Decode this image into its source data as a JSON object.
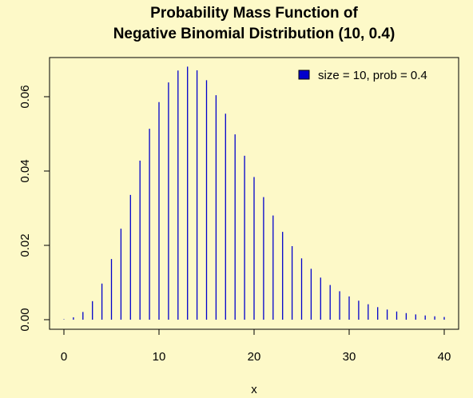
{
  "chart_data": {
    "type": "bar",
    "title": "Probability Mass Function of",
    "subtitle": "Negative Binomial Distribution (10, 0.4)",
    "xlabel": "x",
    "ylabel": "",
    "xlim": [
      0,
      40
    ],
    "ylim": [
      0,
      0.068
    ],
    "x_ticks": [
      "0",
      "10",
      "20",
      "30",
      "40"
    ],
    "y_ticks": [
      "0.00",
      "0.02",
      "0.04",
      "0.06"
    ],
    "legend_position": "top-right",
    "grid": false,
    "colors": {
      "bars": "#0000cc",
      "background": "#fdf9c8",
      "legend_box": "#0000cc"
    },
    "series": [
      {
        "name": "size = 10, prob = 0.4",
        "x": [
          0,
          1,
          2,
          3,
          4,
          5,
          6,
          7,
          8,
          9,
          10,
          11,
          12,
          13,
          14,
          15,
          16,
          17,
          18,
          19,
          20,
          21,
          22,
          23,
          24,
          25,
          26,
          27,
          28,
          29,
          30,
          31,
          32,
          33,
          34,
          35,
          36,
          37,
          38,
          39,
          40
        ],
        "values": [
          0.000105,
          0.000629,
          0.002076,
          0.004983,
          0.009716,
          0.016321,
          0.024482,
          0.033575,
          0.042808,
          0.05137,
          0.058535,
          0.063856,
          0.067049,
          0.06808,
          0.067107,
          0.064423,
          0.060396,
          0.055421,
          0.049877,
          0.044105,
          0.0384,
          0.032991,
          0.028038,
          0.023634,
          0.01979,
          0.016497,
          0.013693,
          0.011324,
          0.00933,
          0.007655,
          0.006261,
          0.005108,
          0.004154,
          0.003375,
          0.002727,
          0.0022,
          0.001771,
          0.001422,
          0.001139,
          0.00091,
          0.000726
        ]
      }
    ]
  }
}
